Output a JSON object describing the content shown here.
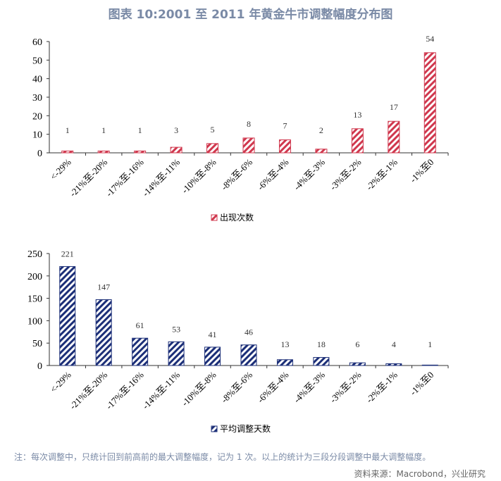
{
  "title": "图表 10:2001 至 2011 年黄金牛市调整幅度分布图",
  "note": "注：每次调整中，只统计回到前高前的最大调整幅度，记为 1 次。以上的统计为三段分段调整中最大调整幅度。",
  "source": "资料来源：Macrobond，兴业研究",
  "chart_data": [
    {
      "type": "bar",
      "categories": [
        "<-29%",
        "-21%至-20%",
        "-17%至-16%",
        "-14%至-11%",
        "-10%至-8%",
        "-8%至-6%",
        "-6%至-4%",
        "-4%至-3%",
        "-3%至-2%",
        "-2%至-1%",
        "-1%至0"
      ],
      "series": [
        {
          "name": "出现次数",
          "values": [
            1,
            1,
            1,
            3,
            5,
            8,
            7,
            2,
            13,
            17,
            54
          ],
          "color": "#d0384e"
        }
      ],
      "ylim": [
        0,
        60
      ],
      "yticks": [
        0,
        10,
        20,
        30,
        40,
        50,
        60
      ],
      "legend": "bottom",
      "pattern": "diagonal-hatch"
    },
    {
      "type": "bar",
      "categories": [
        "<-29%",
        "-21%至-20%",
        "-17%至-16%",
        "-14%至-11%",
        "-10%至-8%",
        "-8%至-6%",
        "-6%至-4%",
        "-4%至-3%",
        "-3%至-2%",
        "-2%至-1%",
        "-1%至0"
      ],
      "series": [
        {
          "name": "平均调整天数",
          "values": [
            221,
            147,
            61,
            53,
            41,
            46,
            13,
            18,
            6,
            4,
            1
          ],
          "color": "#1c2f78"
        }
      ],
      "ylim": [
        0,
        250
      ],
      "yticks": [
        0,
        50,
        100,
        150,
        200,
        250
      ],
      "legend": "bottom",
      "pattern": "diagonal-hatch"
    }
  ]
}
